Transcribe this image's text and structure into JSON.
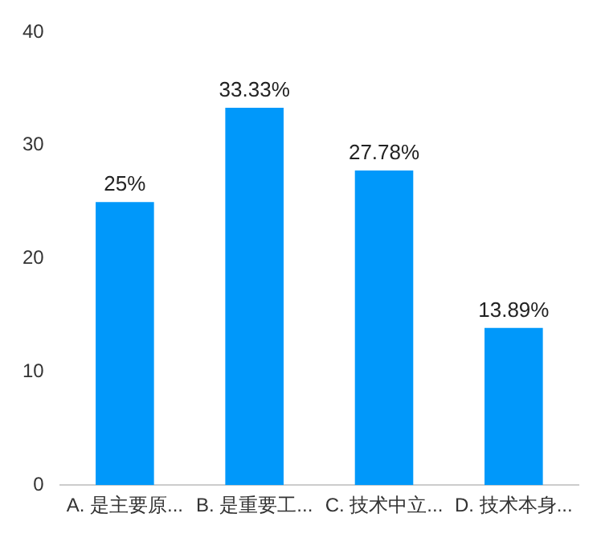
{
  "chart_data": {
    "type": "bar",
    "categories": [
      "A. 是主要原...",
      "B. 是重要工...",
      "C. 技术中立...",
      "D. 技术本身..."
    ],
    "values": [
      25,
      33.33,
      27.78,
      13.89
    ],
    "value_labels": [
      "25%",
      "33.33%",
      "27.78%",
      "13.89%"
    ],
    "color": "#0098fa",
    "ylim": [
      0,
      40
    ],
    "yticks": [
      0,
      10,
      20,
      30,
      40
    ],
    "grid": false,
    "legend": false
  }
}
